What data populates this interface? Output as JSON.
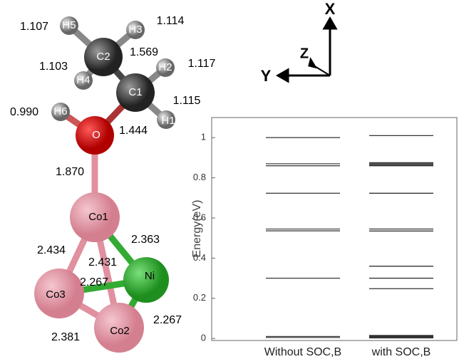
{
  "molecule": {
    "atoms": [
      "H5",
      "H3",
      "C2",
      "H2",
      "H4",
      "C1",
      "H1",
      "H6",
      "O",
      "Co1",
      "Ni",
      "Co3",
      "Co2"
    ],
    "bond_lengths": [
      "1.107",
      "1.114",
      "1.103",
      "1.569",
      "1.117",
      "1.115",
      "0.990",
      "1.444",
      "1.870",
      "2.363",
      "2.434",
      "2.431",
      "2.267",
      "2.267",
      "2.381"
    ]
  },
  "axes": {
    "x": "X",
    "y": "Y",
    "z": "Z"
  },
  "chart_data": {
    "type": "levels",
    "y_label": "Energy(eV)",
    "ylim": [
      -0.01,
      1.1
    ],
    "yticks": [
      0,
      0.2,
      0.4,
      0.6,
      0.8,
      1
    ],
    "series": [
      {
        "name": "Without SOC,B",
        "color": "#444444",
        "values": [
          0.005,
          0.01,
          0.3,
          0.536,
          0.545,
          0.723,
          0.86,
          0.87,
          1.0
        ]
      },
      {
        "name": "with SOC,B",
        "color": "#333333",
        "values": [
          0.003,
          0.006,
          0.009,
          0.012,
          0.015,
          0.248,
          0.3,
          0.36,
          0.535,
          0.545,
          0.723,
          0.86,
          0.865,
          0.87,
          0.875,
          1.01
        ]
      }
    ]
  }
}
